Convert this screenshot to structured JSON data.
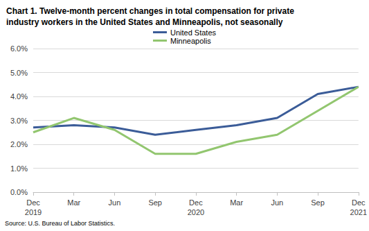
{
  "chart_data": {
    "type": "line",
    "title": "Chart 1. Twelve-month percent changes in total compensation for private\nindustry workers in the United States and Minneapolis, not seasonally",
    "source": "Source: U.S. Bureau of Labor Statistics.",
    "categories": [
      "Dec\n2019",
      "Mar",
      "Jun",
      "Sep",
      "Dec\n2020",
      "Mar",
      "Jun",
      "Sep",
      "Dec\n2021"
    ],
    "series": [
      {
        "name": "United States",
        "color": "#3b5c98",
        "values": [
          2.7,
          2.8,
          2.7,
          2.4,
          2.6,
          2.8,
          3.1,
          4.1,
          4.4
        ]
      },
      {
        "name": "Minneapolis",
        "color": "#92c66f",
        "values": [
          2.5,
          3.1,
          2.6,
          1.6,
          1.6,
          2.1,
          2.4,
          3.4,
          4.4
        ]
      }
    ],
    "ylim": [
      0,
      6
    ],
    "yticks": [
      {
        "value": 0,
        "label": "0.0%"
      },
      {
        "value": 1,
        "label": "1.0%"
      },
      {
        "value": 2,
        "label": "2.0%"
      },
      {
        "value": 3,
        "label": "3.0%"
      },
      {
        "value": 4,
        "label": "4.0%"
      },
      {
        "value": 5,
        "label": "5.0%"
      },
      {
        "value": 6,
        "label": "6.0%"
      }
    ],
    "grid": true,
    "legend": "top"
  }
}
